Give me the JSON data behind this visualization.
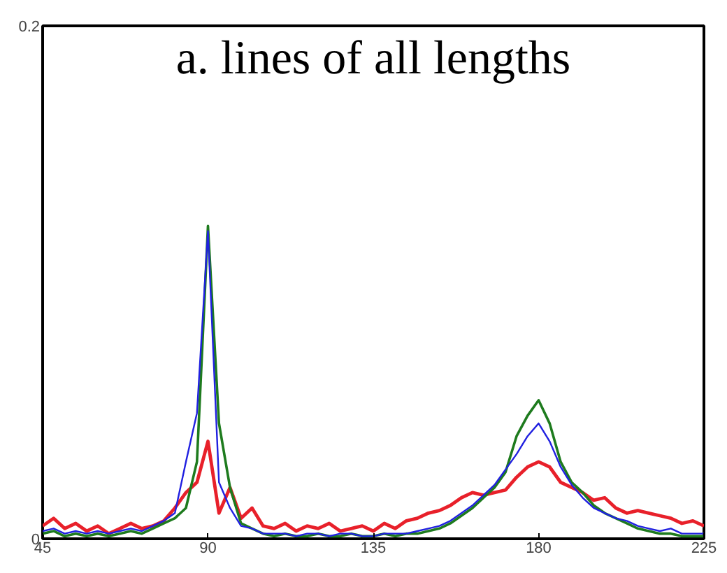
{
  "chart_data": {
    "type": "line",
    "title": "a. lines of all lengths",
    "x": [
      45,
      48,
      51,
      54,
      57,
      60,
      63,
      66,
      69,
      72,
      75,
      78,
      81,
      84,
      87,
      90,
      93,
      96,
      99,
      102,
      105,
      108,
      111,
      114,
      117,
      120,
      123,
      126,
      129,
      132,
      135,
      138,
      141,
      144,
      147,
      150,
      153,
      156,
      159,
      162,
      165,
      168,
      171,
      174,
      177,
      180,
      183,
      186,
      189,
      192,
      195,
      198,
      201,
      204,
      207,
      210,
      213,
      216,
      219,
      222,
      225
    ],
    "series": [
      {
        "color": "#e8202a",
        "values": [
          0.005,
          0.008,
          0.004,
          0.006,
          0.003,
          0.005,
          0.002,
          0.004,
          0.006,
          0.004,
          0.005,
          0.007,
          0.012,
          0.018,
          0.022,
          0.038,
          0.01,
          0.02,
          0.008,
          0.012,
          0.005,
          0.004,
          0.006,
          0.003,
          0.005,
          0.004,
          0.006,
          0.003,
          0.004,
          0.005,
          0.003,
          0.006,
          0.004,
          0.007,
          0.008,
          0.01,
          0.011,
          0.013,
          0.016,
          0.018,
          0.017,
          0.018,
          0.019,
          0.024,
          0.028,
          0.03,
          0.028,
          0.022,
          0.02,
          0.018,
          0.015,
          0.016,
          0.012,
          0.01,
          0.011,
          0.01,
          0.009,
          0.008,
          0.006,
          0.007,
          0.005
        ]
      },
      {
        "color": "#1e7b1e",
        "values": [
          0.002,
          0.003,
          0.001,
          0.002,
          0.001,
          0.002,
          0.001,
          0.002,
          0.003,
          0.002,
          0.004,
          0.006,
          0.008,
          0.012,
          0.03,
          0.122,
          0.045,
          0.02,
          0.006,
          0.004,
          0.002,
          0.001,
          0.002,
          0.001,
          0.001,
          0.002,
          0.001,
          0.001,
          0.002,
          0.001,
          0.001,
          0.002,
          0.001,
          0.002,
          0.002,
          0.003,
          0.004,
          0.006,
          0.009,
          0.012,
          0.016,
          0.02,
          0.026,
          0.04,
          0.048,
          0.054,
          0.045,
          0.03,
          0.022,
          0.018,
          0.013,
          0.01,
          0.008,
          0.006,
          0.004,
          0.003,
          0.002,
          0.002,
          0.001,
          0.001,
          0.001
        ]
      },
      {
        "color": "#2020e0",
        "values": [
          0.003,
          0.004,
          0.002,
          0.003,
          0.002,
          0.003,
          0.002,
          0.003,
          0.004,
          0.003,
          0.005,
          0.007,
          0.01,
          0.03,
          0.049,
          0.12,
          0.022,
          0.012,
          0.005,
          0.004,
          0.002,
          0.002,
          0.002,
          0.001,
          0.002,
          0.002,
          0.001,
          0.002,
          0.002,
          0.001,
          0.001,
          0.002,
          0.002,
          0.002,
          0.003,
          0.004,
          0.005,
          0.007,
          0.01,
          0.013,
          0.017,
          0.021,
          0.027,
          0.033,
          0.04,
          0.045,
          0.038,
          0.028,
          0.021,
          0.016,
          0.012,
          0.01,
          0.008,
          0.007,
          0.005,
          0.004,
          0.003,
          0.004,
          0.002,
          0.002,
          0.002
        ]
      }
    ],
    "xlim": [
      45,
      225
    ],
    "ylim": [
      0,
      0.2
    ],
    "xticks": [
      45,
      90,
      135,
      180,
      225
    ],
    "yticks": [
      0,
      0.2
    ]
  }
}
